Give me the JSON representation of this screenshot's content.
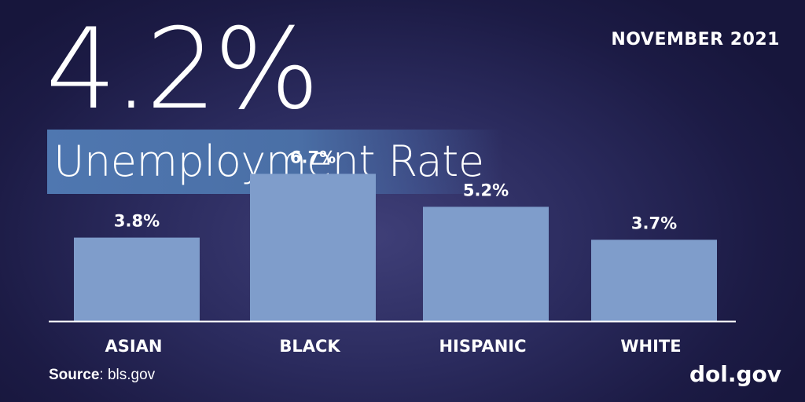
{
  "headline": "4.2%",
  "date": "NOVEMBER 2021",
  "banner_label": "Unemployment Rate",
  "source": {
    "label": "Source",
    "value": "bls.gov"
  },
  "logo": "dol.gov",
  "colors": {
    "bar": "#7f9dcb",
    "banner": "#4f77b0",
    "background": "#2b2b5e"
  },
  "chart_data": {
    "type": "bar",
    "categories": [
      "ASIAN",
      "BLACK",
      "HISPANIC",
      "WHITE"
    ],
    "values": [
      3.8,
      6.7,
      5.2,
      3.7
    ],
    "data_labels": [
      "3.8%",
      "6.7%",
      "5.2%",
      "3.7%"
    ],
    "ylim": [
      0,
      7
    ],
    "grid": false,
    "legend": "none"
  }
}
